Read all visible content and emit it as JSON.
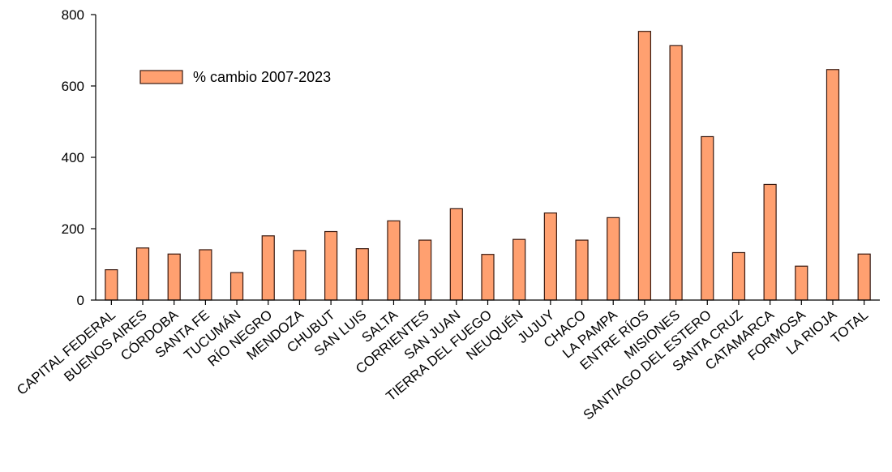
{
  "chart_data": {
    "type": "bar",
    "categories": [
      "CAPITAL FEDERAL",
      "BUENOS AIRES",
      "CÓRDOBA",
      "SANTA FE",
      "TUCUMÁN",
      "RÍO NEGRO",
      "MENDOZA",
      "CHUBUT",
      "SAN LUIS",
      "SALTA",
      "CORRIENTES",
      "SAN JUAN",
      "TIERRA DEL FUEGO",
      "NEUQUÉN",
      "JUJUY",
      "CHACO",
      "LA PAMPA",
      "ENTRE RÍOS",
      "MISIONES",
      "SANTIAGO DEL ESTERO",
      "SANTA CRUZ",
      "CATAMARCA",
      "FORMOSA",
      "LA RIOJA",
      "TOTAL"
    ],
    "series": [
      {
        "name": "% cambio 2007-2023",
        "values": [
          85,
          146,
          129,
          141,
          77,
          180,
          139,
          192,
          144,
          222,
          168,
          256,
          128,
          170,
          244,
          168,
          231,
          753,
          713,
          458,
          133,
          324,
          95,
          646,
          129
        ]
      }
    ],
    "title": "",
    "xlabel": "",
    "ylabel": "",
    "ylim": [
      0,
      800
    ],
    "yticks": [
      0,
      200,
      400,
      600,
      800
    ],
    "grid": false,
    "legend": "upper-left",
    "colors": {
      "bar_fill": "#FFA070",
      "bar_stroke": "#3a1a10",
      "axis": "#000000"
    }
  }
}
